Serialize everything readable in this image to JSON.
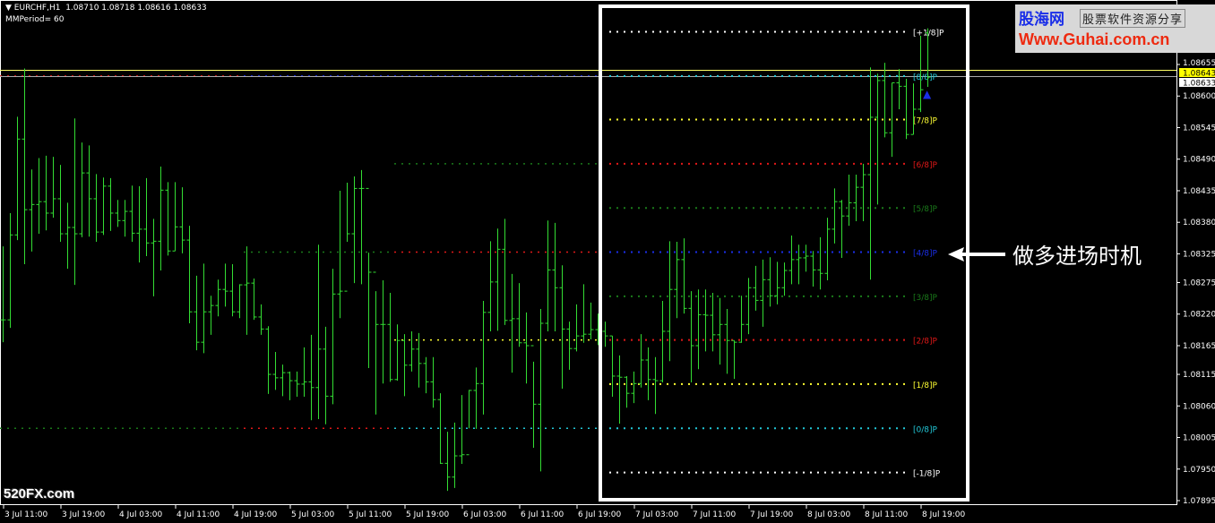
{
  "header": {
    "symbol": "EURCHF,H1",
    "ohlc": "1.08710 1.08718 1.08616 1.08633",
    "indicator": "MMPeriod= 60"
  },
  "logo": {
    "name": "股海网",
    "tagline": "股票软件资源分享",
    "url": "Www.Guhai.com.cn"
  },
  "annotation": {
    "text": "做多进场时机",
    "arrow_icon": "arrow-left-icon"
  },
  "watermark": "520FX.com",
  "colors": {
    "bars": "#33dd33",
    "background": "#000000",
    "ask_line": "#ffff66",
    "bid_line": "#aaaaaa",
    "box": "#ffffff"
  },
  "chart_data": {
    "type": "ohlc-bar",
    "symbol": "EURCHF",
    "timeframe": "H1",
    "last_bar": {
      "open": 1.0871,
      "high": 1.08718,
      "low": 1.08616,
      "close": 1.08633
    },
    "bars_hlc": [
      [
        1.08338,
        1.08171,
        1.0821
      ],
      [
        1.08396,
        1.08196,
        1.08358
      ],
      [
        1.08564,
        1.08349,
        1.08525
      ],
      [
        1.08648,
        1.08307,
        1.08402
      ],
      [
        1.08472,
        1.08329,
        1.08411
      ],
      [
        1.08492,
        1.0836,
        1.08416
      ],
      [
        1.08496,
        1.08366,
        1.08396
      ],
      [
        1.08494,
        1.08388,
        1.08421
      ],
      [
        1.0848,
        1.08346,
        1.0836
      ],
      [
        1.08414,
        1.08299,
        1.08371
      ],
      [
        1.08561,
        1.08271,
        1.0836
      ],
      [
        1.08519,
        1.08354,
        1.08466
      ],
      [
        1.08514,
        1.08355,
        1.08421
      ],
      [
        1.08464,
        1.08346,
        1.08363
      ],
      [
        1.08458,
        1.08358,
        1.08443
      ],
      [
        1.08457,
        1.08365,
        1.08396
      ],
      [
        1.08419,
        1.08372,
        1.08383
      ],
      [
        1.08419,
        1.08355,
        1.08399
      ],
      [
        1.08444,
        1.08346,
        1.08361
      ],
      [
        1.08443,
        1.0831,
        1.08368
      ],
      [
        1.08457,
        1.08321,
        1.08344
      ],
      [
        1.08386,
        1.08251,
        1.08347
      ],
      [
        1.08477,
        1.08296,
        1.08436
      ],
      [
        1.0845,
        1.08322,
        1.0833
      ],
      [
        1.0845,
        1.0833,
        1.08372
      ],
      [
        1.08441,
        1.08326,
        1.08349
      ],
      [
        1.08374,
        1.08204,
        1.08224
      ],
      [
        1.08287,
        1.08157,
        1.08171
      ],
      [
        1.08308,
        1.08152,
        1.08224
      ],
      [
        1.08252,
        1.08184,
        1.08235
      ],
      [
        1.0828,
        1.08216,
        1.08263
      ],
      [
        1.08308,
        1.08233,
        1.0826
      ],
      [
        1.08307,
        1.08216,
        1.08224
      ],
      [
        1.08272,
        1.08213,
        1.08271
      ],
      [
        1.08338,
        1.08184,
        1.08274
      ],
      [
        1.08282,
        1.0821,
        1.08215
      ],
      [
        1.08237,
        1.08184,
        1.08194
      ],
      [
        1.08199,
        1.08081,
        1.08115
      ],
      [
        1.08154,
        1.08088,
        1.08109
      ],
      [
        1.08132,
        1.08077,
        1.08118
      ],
      [
        1.0812,
        1.0807,
        1.08104
      ],
      [
        1.0812,
        1.08076,
        1.08098
      ],
      [
        1.08162,
        1.08076,
        1.08102
      ],
      [
        1.08184,
        1.08035,
        1.08092
      ],
      [
        1.08341,
        1.08037,
        1.08159
      ],
      [
        1.08198,
        1.08028,
        1.08077
      ],
      [
        1.08299,
        1.08063,
        1.08255
      ],
      [
        1.08435,
        1.08213,
        1.0826
      ],
      [
        1.08449,
        1.08346,
        1.0836
      ],
      [
        1.0846,
        1.08274,
        1.08439
      ],
      [
        1.08471,
        1.08272,
        1.08439
      ],
      [
        1.08327,
        1.08126,
        1.08293
      ],
      [
        1.0826,
        1.08045,
        1.08202
      ],
      [
        1.08279,
        1.08099,
        1.08202
      ],
      [
        1.08257,
        1.08102,
        1.08106
      ],
      [
        1.08202,
        1.08104,
        1.08174
      ],
      [
        1.08185,
        1.08077,
        1.08131
      ],
      [
        1.0819,
        1.0812,
        1.08159
      ],
      [
        1.08187,
        1.08092,
        1.08134
      ],
      [
        1.08145,
        1.08082,
        1.08102
      ],
      [
        1.08145,
        1.08057,
        1.08071
      ],
      [
        1.08082,
        1.07959,
        1.0796
      ],
      [
        1.08015,
        1.07912,
        1.07936
      ],
      [
        1.08031,
        1.07917,
        1.07973
      ],
      [
        1.08079,
        1.07959,
        1.07975
      ],
      [
        1.08088,
        1.08021,
        1.08087
      ],
      [
        1.08127,
        1.0802,
        1.08099
      ],
      [
        1.08243,
        1.08045,
        1.08223
      ],
      [
        1.08347,
        1.0819,
        1.08276
      ],
      [
        1.08369,
        1.08191,
        1.08333
      ],
      [
        1.08386,
        1.08201,
        1.08209
      ],
      [
        1.0829,
        1.08118,
        1.08212
      ],
      [
        1.08274,
        1.08163,
        1.0817
      ],
      [
        1.08223,
        1.08099,
        1.08165
      ],
      [
        1.08137,
        1.07987,
        1.08063
      ],
      [
        1.08229,
        1.07946,
        1.08204
      ],
      [
        1.08383,
        1.0819,
        1.08297
      ],
      [
        1.08379,
        1.0819,
        1.08266
      ],
      [
        1.08305,
        1.0809,
        1.08194
      ],
      [
        1.08207,
        1.08123,
        1.0816
      ],
      [
        1.08237,
        1.08155,
        1.08182
      ],
      [
        1.08272,
        1.0817,
        1.08185
      ],
      [
        1.0824,
        1.08176,
        1.08193
      ],
      [
        1.08221,
        1.08166,
        1.0819
      ],
      [
        1.08207,
        1.08163,
        1.08182
      ],
      [
        1.08182,
        1.08076,
        1.08112
      ],
      [
        1.08148,
        1.08029,
        1.0811
      ],
      [
        1.08112,
        1.08057,
        1.08082
      ],
      [
        1.0812,
        1.08065,
        1.08099
      ],
      [
        1.08185,
        1.08092,
        1.0814
      ],
      [
        1.08162,
        1.0807,
        1.08106
      ],
      [
        1.08145,
        1.08046,
        1.08104
      ],
      [
        1.08243,
        1.08101,
        1.0819
      ],
      [
        1.08347,
        1.08138,
        1.08263
      ],
      [
        1.08346,
        1.08213,
        1.08315
      ],
      [
        1.08352,
        1.08221,
        1.0823
      ],
      [
        1.0826,
        1.08101,
        1.08165
      ],
      [
        1.08263,
        1.08124,
        1.08219
      ],
      [
        1.08263,
        1.08155,
        1.08218
      ],
      [
        1.08257,
        1.08155,
        1.08184
      ],
      [
        1.08248,
        1.08132,
        1.08202
      ],
      [
        1.08229,
        1.08116,
        1.08174
      ],
      [
        1.08174,
        1.08107,
        1.08171
      ],
      [
        1.08252,
        1.0817,
        1.08202
      ],
      [
        1.08283,
        1.08185,
        1.08266
      ],
      [
        1.08304,
        1.08226,
        1.08244
      ],
      [
        1.08315,
        1.08198,
        1.0828
      ],
      [
        1.08319,
        1.08233,
        1.08252
      ],
      [
        1.08311,
        1.08237,
        1.08266
      ],
      [
        1.0831,
        1.08252,
        1.08296
      ],
      [
        1.08357,
        1.08272,
        1.08315
      ],
      [
        1.08341,
        1.08272,
        1.08318
      ],
      [
        1.08341,
        1.08294,
        1.08321
      ],
      [
        1.0833,
        1.08268,
        1.08297
      ],
      [
        1.08354,
        1.08263,
        1.08291
      ],
      [
        1.08388,
        1.08279,
        1.08368
      ],
      [
        1.08439,
        1.08343,
        1.08416
      ],
      [
        1.08419,
        1.08318,
        1.08391
      ],
      [
        1.08463,
        1.08374,
        1.08414
      ],
      [
        1.08463,
        1.08382,
        1.08441
      ],
      [
        1.08482,
        1.08382,
        1.08463
      ],
      [
        1.0865,
        1.0828,
        1.08563
      ],
      [
        1.08639,
        1.08411,
        1.08627
      ],
      [
        1.08658,
        1.08528,
        1.08536
      ],
      [
        1.08623,
        1.08494,
        1.08623
      ],
      [
        1.08647,
        1.08577,
        1.08617
      ],
      [
        1.0863,
        1.08525,
        1.08533
      ],
      [
        1.08622,
        1.08533,
        1.08577
      ],
      [
        1.08705,
        1.08572,
        1.08611
      ],
      [
        1.08718,
        1.08616,
        1.08633
      ]
    ],
    "price_axis_ticks": [
      "1.08655",
      "1.08600",
      "1.08545",
      "1.08490",
      "1.08435",
      "1.08380",
      "1.08325",
      "1.08275",
      "1.08220",
      "1.08165",
      "1.08115",
      "1.08060",
      "1.08005",
      "1.07950",
      "1.07895"
    ],
    "ask_label": "1.08643",
    "bid_label": "1.08633",
    "time_axis_labels": [
      "3 Jul 11:00",
      "3 Jul 19:00",
      "4 Jul 03:00",
      "4 Jul 11:00",
      "4 Jul 19:00",
      "5 Jul 03:00",
      "5 Jul 11:00",
      "5 Jul 19:00",
      "6 Jul 03:00",
      "6 Jul 11:00",
      "6 Jul 19:00",
      "7 Jul 03:00",
      "7 Jul 11:00",
      "7 Jul 19:00",
      "8 Jul 03:00",
      "8 Jul 11:00",
      "8 Jul 19:00"
    ],
    "murrey_levels": [
      {
        "label": "[+1/8]P",
        "price": 1.08712,
        "color": "#ffffff"
      },
      {
        "label": "[8/8]P",
        "price": 1.08635,
        "color": "#22c8d8"
      },
      {
        "label": "[7/8]P",
        "price": 1.08559,
        "color": "#ffff33"
      },
      {
        "label": "[6/8]P",
        "price": 1.08482,
        "color": "#e01818"
      },
      {
        "label": "[5/8]P",
        "price": 1.08405,
        "color": "#1a7a1a"
      },
      {
        "label": "[4/8]P",
        "price": 1.08328,
        "color": "#1a2ee8"
      },
      {
        "label": "[3/8]P",
        "price": 1.08251,
        "color": "#1a7a1a"
      },
      {
        "label": "[2/8]P",
        "price": 1.08175,
        "color": "#e01818"
      },
      {
        "label": "[1/8]P",
        "price": 1.08098,
        "color": "#ffff33"
      },
      {
        "label": "[0/8]P",
        "price": 1.08021,
        "color": "#22c8d8"
      },
      {
        "label": "[-1/8]P",
        "price": 1.07944,
        "color": "#ffffff"
      }
    ],
    "previous_levels": [
      {
        "price": 1.08635,
        "from_bar": 0,
        "to_bar": 33,
        "color": "#e01818"
      },
      {
        "price": 1.08635,
        "from_bar": 34,
        "to_bar": 83,
        "color": "#1a2ee8"
      },
      {
        "price": 1.08482,
        "from_bar": 55,
        "to_bar": 83,
        "color": "#1a7a1a"
      },
      {
        "price": 1.08328,
        "from_bar": 34,
        "to_bar": 54,
        "color": "#1a7a1a"
      },
      {
        "price": 1.08328,
        "from_bar": 55,
        "to_bar": 83,
        "color": "#e01818"
      },
      {
        "price": 1.08175,
        "from_bar": 55,
        "to_bar": 83,
        "color": "#ffff33"
      },
      {
        "price": 1.08021,
        "from_bar": 0,
        "to_bar": 33,
        "color": "#1a7a1a"
      },
      {
        "price": 1.08021,
        "from_bar": 34,
        "to_bar": 54,
        "color": "#e01818"
      },
      {
        "price": 1.08021,
        "from_bar": 55,
        "to_bar": 83,
        "color": "#22c8d8"
      }
    ],
    "signal_arrow": {
      "icon": "up-arrow-icon",
      "color": "#1a2ee8"
    }
  }
}
